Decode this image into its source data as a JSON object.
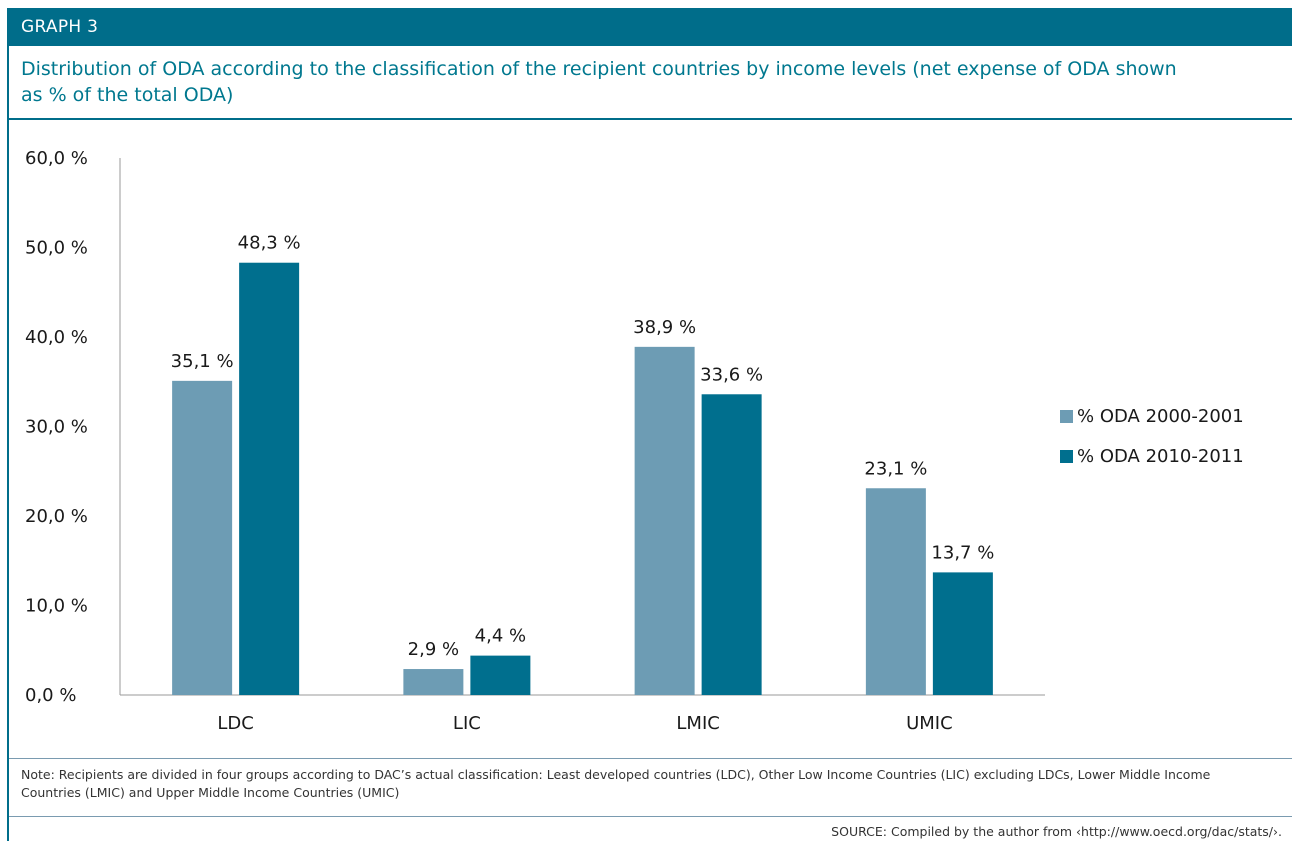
{
  "header": {
    "label": "GRAPH 3"
  },
  "title": "Distribution of ODA according to the classification of the recipient countries by income levels (net expense of ODA shown as % of the total ODA)",
  "colors": {
    "header": "#006d8a",
    "series1": "#6d9cb4",
    "series2": "#006f8e",
    "title": "#00788f"
  },
  "chart_data": {
    "type": "bar",
    "categories": [
      "LDC",
      "LIC",
      "LMIC",
      "UMIC"
    ],
    "series": [
      {
        "name": "% ODA 2000-2001",
        "values": [
          35.1,
          2.9,
          38.9,
          23.1
        ],
        "labels": [
          "35,1 %",
          "2,9 %",
          "38,9 %",
          "23,1 %"
        ]
      },
      {
        "name": "% ODA 2010-2011",
        "values": [
          48.3,
          4.4,
          33.6,
          13.7
        ],
        "labels": [
          "48,3 %",
          "4,4 %",
          "33,6 %",
          "13,7 %"
        ]
      }
    ],
    "ylim": [
      0,
      60
    ],
    "yticks": [
      0,
      10,
      20,
      30,
      40,
      50,
      60
    ],
    "ytick_labels": [
      "0,0 %",
      "10,0 %",
      "20,0 %",
      "30,0 %",
      "40,0 %",
      "50,0 %",
      "60,0 %"
    ],
    "grid": false,
    "legend_position": "right"
  },
  "note": "Note: Recipients are divided in four groups according to DAC’s actual classification: Least developed countries (LDC), Other Low Income Countries (LIC) excluding LDCs, Lower Middle Income Countries (LMIC) and Upper Middle Income Countries (UMIC)",
  "source": "SOURCE: Compiled by the author from ‹http://www.oecd.org/dac/stats/›."
}
